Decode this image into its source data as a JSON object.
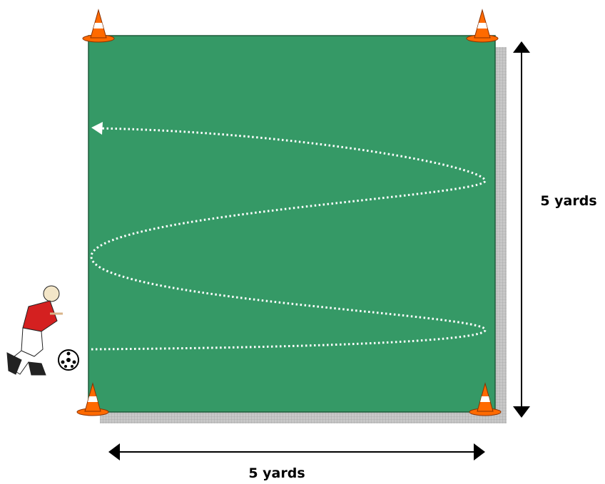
{
  "labels": {
    "height": "5 yards",
    "width": "5 yards"
  }
}
